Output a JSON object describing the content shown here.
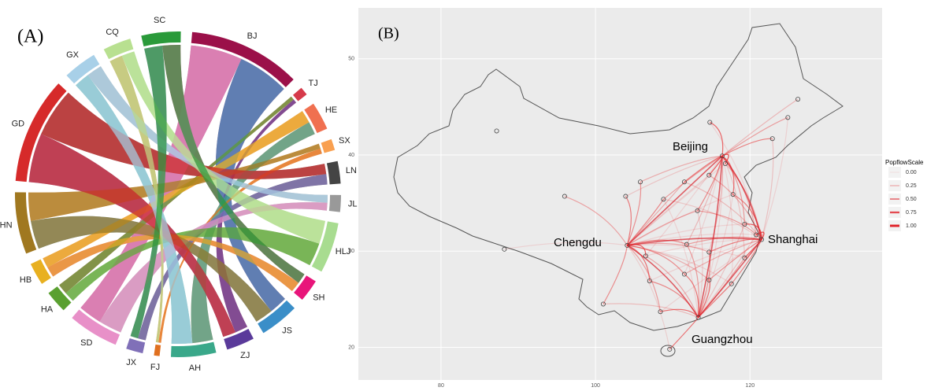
{
  "panel_a": {
    "label": "(A)",
    "segments": [
      {
        "name": "BJ",
        "color": "#9b1049",
        "value": 40
      },
      {
        "name": "TJ",
        "color": "#d63a4a",
        "value": 3
      },
      {
        "name": "HE",
        "color": "#f07050",
        "value": 10
      },
      {
        "name": "SX",
        "color": "#f9a050",
        "value": 4
      },
      {
        "name": "LN",
        "color": "#444444",
        "value": 8
      },
      {
        "name": "JL",
        "color": "#999999",
        "value": 6
      },
      {
        "name": "HLJ",
        "color": "#a8dc90",
        "value": 18
      },
      {
        "name": "SH",
        "color": "#e8157a",
        "value": 8
      },
      {
        "name": "JS",
        "color": "#3a8ec8",
        "value": 14
      },
      {
        "name": "ZJ",
        "color": "#5a3a9a",
        "value": 10
      },
      {
        "name": "AH",
        "color": "#3aa88a",
        "value": 16
      },
      {
        "name": "FJ",
        "color": "#e07020",
        "value": 2
      },
      {
        "name": "JX",
        "color": "#8070b8",
        "value": 6
      },
      {
        "name": "SD",
        "color": "#e890c8",
        "value": 18
      },
      {
        "name": "HA",
        "color": "#5aa030",
        "value": 8
      },
      {
        "name": "HB",
        "color": "#e8b020",
        "value": 8
      },
      {
        "name": "HN",
        "color": "#a07820",
        "value": 22
      },
      {
        "name": "GD",
        "color": "#d62a2a",
        "value": 38
      },
      {
        "name": "GX",
        "color": "#a8d0e8",
        "value": 12
      },
      {
        "name": "CQ",
        "color": "#b8e090",
        "value": 10
      },
      {
        "name": "SC",
        "color": "#2a9a3a",
        "value": 14
      }
    ]
  },
  "panel_b": {
    "label": "(B)",
    "xlim": [
      69.3,
      137.1
    ],
    "ylim": [
      16.6,
      55.3
    ],
    "xticks": [
      80,
      100,
      120
    ],
    "yticks": [
      20,
      30,
      40,
      50
    ],
    "hubs": [
      {
        "name": "Beijing",
        "lon": 116.4,
        "lat": 39.9
      },
      {
        "name": "Shanghai",
        "lon": 121.5,
        "lat": 31.2
      },
      {
        "name": "Chengdu",
        "lon": 104.1,
        "lat": 30.6
      },
      {
        "name": "Guangzhou",
        "lon": 113.3,
        "lat": 23.1
      }
    ],
    "points": [
      [
        126.2,
        45.8
      ],
      [
        124.9,
        43.9
      ],
      [
        122.9,
        41.7
      ],
      [
        114.8,
        43.4
      ],
      [
        87.2,
        42.5
      ],
      [
        96,
        35.7
      ],
      [
        103.9,
        35.7
      ],
      [
        105.8,
        37.2
      ],
      [
        108.8,
        35.4
      ],
      [
        111.5,
        37.2
      ],
      [
        114.7,
        37.9
      ],
      [
        116.8,
        39.1
      ],
      [
        113.2,
        34.2
      ],
      [
        117.8,
        35.9
      ],
      [
        119.3,
        32.8
      ],
      [
        120.8,
        31.7
      ],
      [
        119.3,
        29.3
      ],
      [
        111.8,
        30.7
      ],
      [
        106.5,
        29.5
      ],
      [
        114.7,
        29.9
      ],
      [
        111.5,
        27.6
      ],
      [
        114.7,
        27
      ],
      [
        117.6,
        26.6
      ],
      [
        107,
        26.9
      ],
      [
        108.4,
        23.7
      ],
      [
        101,
        24.5
      ],
      [
        88.2,
        30.2
      ],
      [
        109.6,
        19.8
      ]
    ],
    "legend": {
      "title": "PopflowScale",
      "entries": [
        "0.00",
        "0.25",
        "0.50",
        "0.75",
        "1.00"
      ]
    }
  }
}
